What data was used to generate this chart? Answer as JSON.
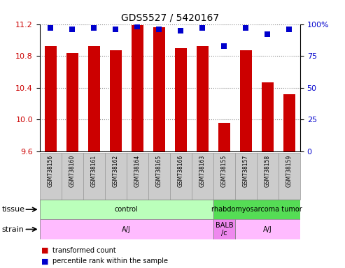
{
  "title": "GDS5527 / 5420167",
  "samples": [
    "GSM738156",
    "GSM738160",
    "GSM738161",
    "GSM738162",
    "GSM738164",
    "GSM738165",
    "GSM738166",
    "GSM738163",
    "GSM738155",
    "GSM738157",
    "GSM738158",
    "GSM738159"
  ],
  "transformed_counts": [
    10.92,
    10.84,
    10.92,
    10.87,
    11.19,
    11.16,
    10.9,
    10.92,
    9.96,
    10.87,
    10.47,
    10.32
  ],
  "percentile_ranks": [
    97,
    96,
    97,
    96,
    98,
    96,
    95,
    97,
    83,
    97,
    92,
    96
  ],
  "ymin": 9.6,
  "ymax": 11.2,
  "yticks_left": [
    9.6,
    10.0,
    10.4,
    10.8,
    11.2
  ],
  "yticks_right": [
    0,
    25,
    50,
    75,
    100
  ],
  "bar_color": "#cc0000",
  "dot_color": "#0000cc",
  "tissue_groups": [
    {
      "label": "control",
      "start": 0,
      "end": 8,
      "color": "#bbffbb"
    },
    {
      "label": "rhabdomyosarcoma tumor",
      "start": 8,
      "end": 12,
      "color": "#55dd55"
    }
  ],
  "strain_groups": [
    {
      "label": "A/J",
      "start": 0,
      "end": 8,
      "color": "#ffbbff"
    },
    {
      "label": "BALB\n/c",
      "start": 8,
      "end": 9,
      "color": "#ee88ee"
    },
    {
      "label": "A/J",
      "start": 9,
      "end": 12,
      "color": "#ffbbff"
    }
  ],
  "bg_color": "#ffffff",
  "plot_bg": "#ffffff",
  "sample_box_color": "#cccccc",
  "ylabel_left_color": "#cc0000",
  "ylabel_right_color": "#0000cc",
  "bar_width": 0.55,
  "dot_size": 40,
  "grid_color": "#888888",
  "title_fontsize": 10,
  "tick_fontsize": 8,
  "label_fontsize": 7,
  "sample_fontsize": 5.5
}
